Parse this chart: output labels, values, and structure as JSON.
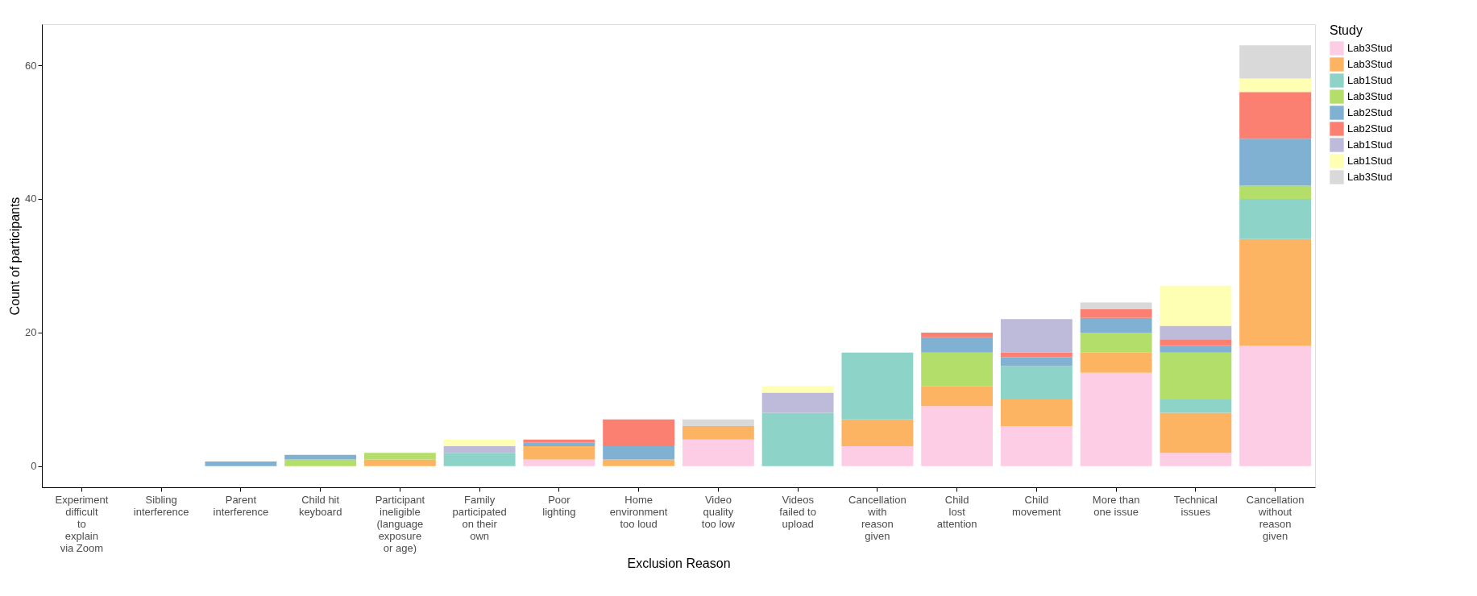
{
  "chart_data": {
    "type": "bar",
    "stacked": true,
    "xlabel": "Exclusion Reason",
    "ylabel": "Count of participants",
    "legend_title": "Study",
    "legend": "right",
    "grid": false,
    "categories": [
      "Experiment\ndifficult\nto\nexplain\nvia Zoom",
      "Sibling\ninterference",
      "Parent\ninterference",
      "Child hit\nkeyboard",
      "Participant\nineligible\n(language\nexposure\nor age)",
      "Family\nparticipated\non their\nown",
      "Poor\nlighting",
      "Home\nenvironment\ntoo loud",
      "Video\nquality\ntoo low",
      "Videos\nfailed to\nupload",
      "Cancellation\nwith\nreason\ngiven",
      "Child\nlost\nattention",
      "Child\nmovement",
      "More than\none issue",
      "Technical\nissues",
      "Cancellation\nwithout\nreason\ngiven"
    ],
    "ylim": [
      -3.15,
      66.15
    ],
    "yticks": [
      0,
      20,
      40,
      60
    ],
    "series": [
      {
        "name": "Lab3Stud",
        "color": "#fccde5",
        "values": [
          null,
          null,
          null,
          null,
          null,
          null,
          1,
          null,
          4,
          null,
          3,
          9,
          6,
          14,
          2,
          18
        ]
      },
      {
        "name": "Lab3Stud",
        "color": "#fdb462",
        "values": [
          null,
          null,
          null,
          null,
          1,
          null,
          2,
          1,
          2,
          null,
          4,
          3,
          4,
          3,
          6,
          16
        ]
      },
      {
        "name": "Lab1Stud",
        "color": "#8dd3c7",
        "values": [
          null,
          null,
          null,
          null,
          null,
          2,
          null,
          null,
          null,
          8,
          10,
          null,
          5,
          null,
          2,
          6
        ]
      },
      {
        "name": "Lab3Stud",
        "color": "#b3de69",
        "values": [
          null,
          null,
          null,
          1,
          1,
          null,
          null,
          null,
          null,
          null,
          null,
          5,
          null,
          3,
          7,
          2
        ]
      },
      {
        "name": "Lab2Stud",
        "color": "#80b1d3",
        "values": [
          null,
          null,
          0.7,
          0.7,
          null,
          null,
          0.5,
          2,
          null,
          null,
          null,
          2.3,
          1.3,
          2.2,
          1,
          7
        ]
      },
      {
        "name": "Lab2Stud",
        "color": "#fb8072",
        "values": [
          null,
          null,
          null,
          null,
          null,
          null,
          0.5,
          4,
          null,
          null,
          null,
          0.7,
          0.7,
          1.3,
          1,
          7
        ]
      },
      {
        "name": "Lab1Stud",
        "color": "#bebada",
        "values": [
          null,
          null,
          null,
          null,
          null,
          1,
          null,
          null,
          null,
          3,
          null,
          null,
          5,
          null,
          2,
          null
        ]
      },
      {
        "name": "Lab1Stud",
        "color": "#ffffb3",
        "values": [
          null,
          null,
          null,
          null,
          null,
          1,
          null,
          null,
          null,
          1,
          null,
          null,
          null,
          null,
          6,
          2
        ]
      },
      {
        "name": "Lab3Stud",
        "color": "#d9d9d9",
        "values": [
          null,
          null,
          null,
          null,
          null,
          null,
          null,
          null,
          1,
          null,
          null,
          null,
          null,
          1,
          null,
          5
        ]
      }
    ]
  }
}
